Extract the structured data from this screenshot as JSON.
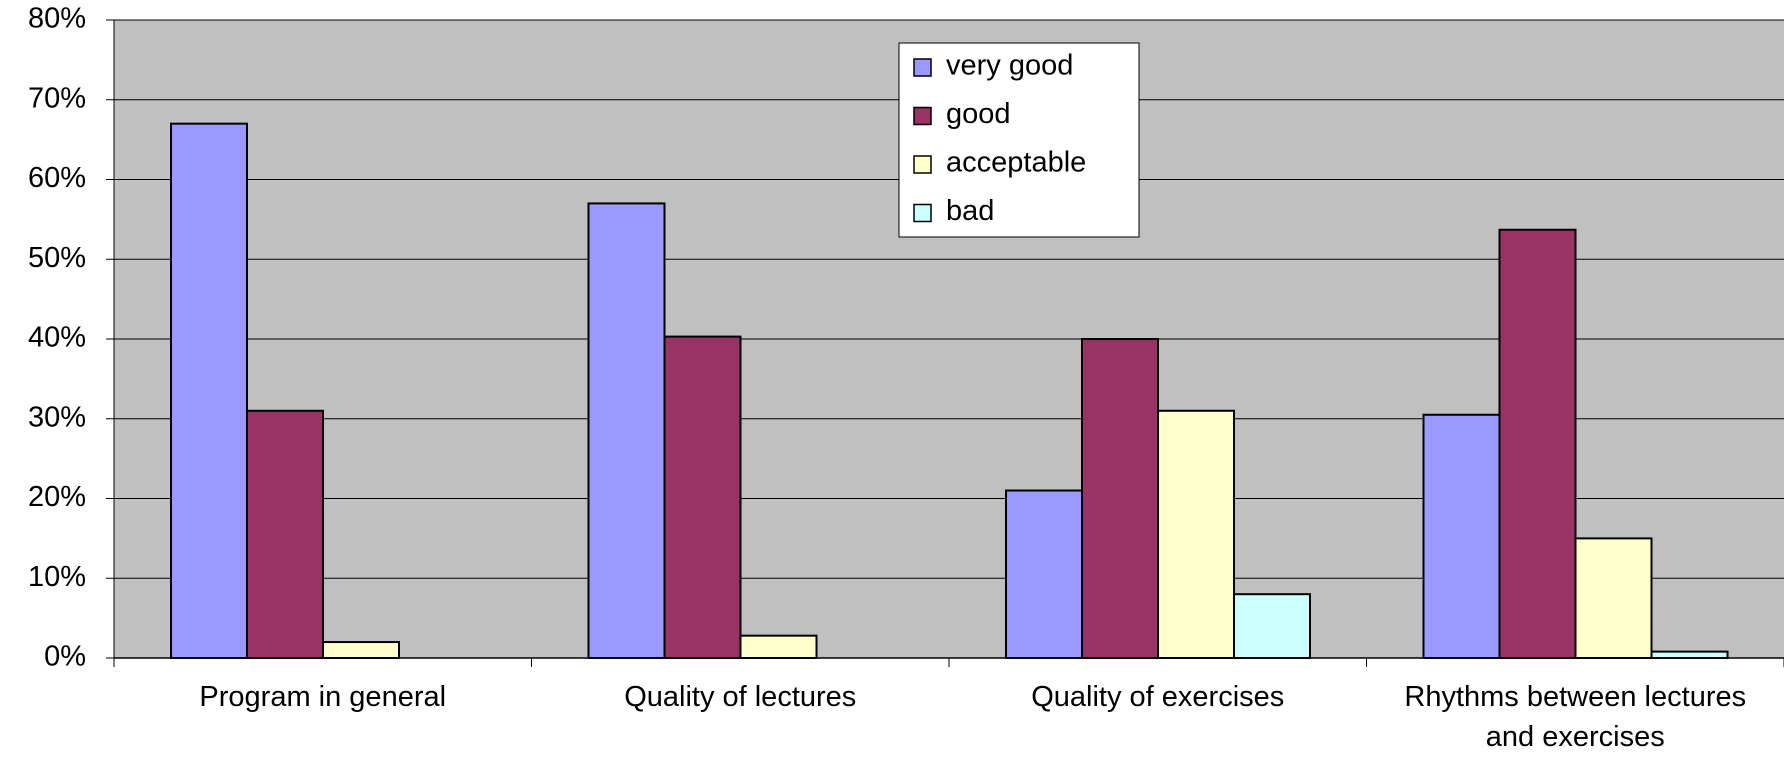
{
  "chart_data": {
    "type": "bar",
    "categories": [
      "Program in general",
      "Quality of lectures",
      "Quality of exercises",
      "Rhythms between lectures and exercises"
    ],
    "series": [
      {
        "name": "very good",
        "color": "#9999ff",
        "values": [
          67,
          57,
          21,
          30.5
        ]
      },
      {
        "name": "good",
        "color": "#993366",
        "values": [
          31,
          40.3,
          40,
          53.7
        ]
      },
      {
        "name": "acceptable",
        "color": "#ffffcc",
        "values": [
          2,
          2.8,
          31,
          15
        ]
      },
      {
        "name": "bad",
        "color": "#ccffff",
        "values": [
          0,
          0,
          8,
          0.8
        ]
      }
    ],
    "ylim": [
      0,
      80
    ],
    "yticks": [
      {
        "value": 0,
        "label": "0%"
      },
      {
        "value": 10,
        "label": "10%"
      },
      {
        "value": 20,
        "label": "20%"
      },
      {
        "value": 30,
        "label": "30%"
      },
      {
        "value": 40,
        "label": "40%"
      },
      {
        "value": 50,
        "label": "50%"
      },
      {
        "value": 60,
        "label": "60%"
      },
      {
        "value": 70,
        "label": "70%"
      },
      {
        "value": 80,
        "label": "80%"
      }
    ],
    "grid": true,
    "legend": "top"
  }
}
